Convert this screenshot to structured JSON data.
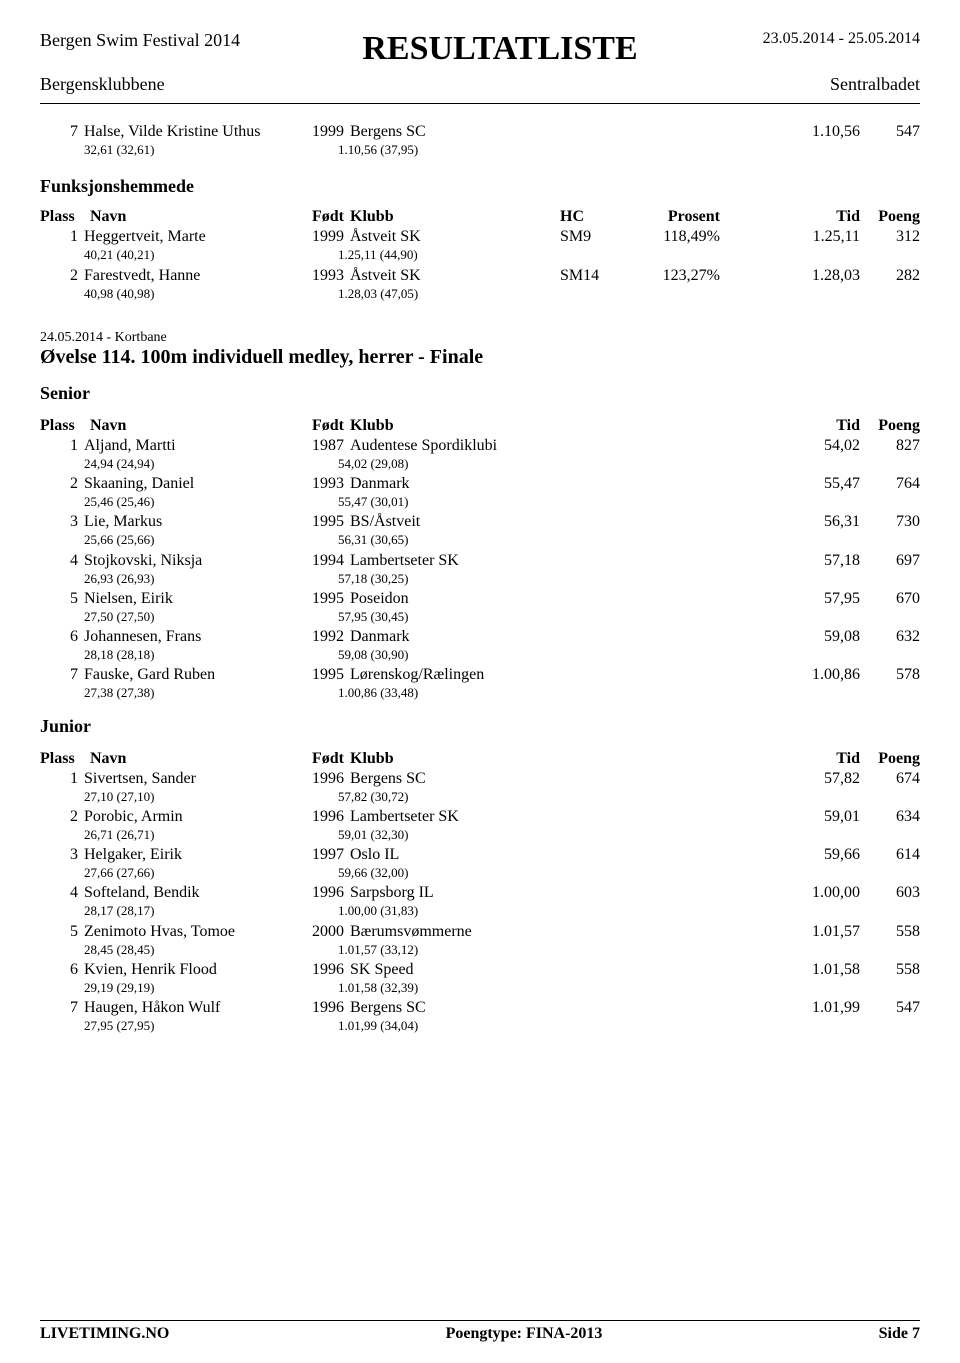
{
  "header": {
    "festival": "Bergen Swim Festival 2014",
    "title": "RESULTATLISTE",
    "dates": "23.05.2014 - 25.05.2014",
    "club": "Bergensklubbene",
    "venue": "Sentralbadet"
  },
  "topResult": {
    "plass": "7",
    "navn": "Halse, Vilde Kristine Uthus",
    "fodt": "1999",
    "klubb": "Bergens SC",
    "tid": "1.10,56",
    "poeng": "547",
    "split1": "32,61 (32,61)",
    "split2": "1.10,56 (37,95)"
  },
  "funksjonshemmede": {
    "title": "Funksjonshemmede",
    "headers": {
      "plass": "Plass",
      "navn": "Navn",
      "fodt": "Født",
      "klubb": "Klubb",
      "hc": "HC",
      "prosent": "Prosent",
      "tid": "Tid",
      "poeng": "Poeng"
    },
    "rows": [
      {
        "plass": "1",
        "navn": "Heggertveit, Marte",
        "fodt": "1999",
        "klubb": "Åstveit SK",
        "hc": "SM9",
        "prosent": "118,49%",
        "tid": "1.25,11",
        "poeng": "312",
        "split1": "40,21 (40,21)",
        "split2": "1.25,11 (44,90)"
      },
      {
        "plass": "2",
        "navn": "Farestvedt, Hanne",
        "fodt": "1993",
        "klubb": "Åstveit SK",
        "hc": "SM14",
        "prosent": "123,27%",
        "tid": "1.28,03",
        "poeng": "282",
        "split1": "40,98 (40,98)",
        "split2": "1.28,03 (47,05)"
      }
    ]
  },
  "event": {
    "date": "24.05.2014 - Kortbane",
    "title": "Øvelse 114. 100m individuell medley, herrer - Finale"
  },
  "senior": {
    "title": "Senior",
    "headers": {
      "plass": "Plass",
      "navn": "Navn",
      "fodt": "Født",
      "klubb": "Klubb",
      "tid": "Tid",
      "poeng": "Poeng"
    },
    "rows": [
      {
        "plass": "1",
        "navn": "Aljand, Martti",
        "fodt": "1987",
        "klubb": "Audentese Spordiklubi",
        "tid": "54,02",
        "poeng": "827",
        "split1": "24,94 (24,94)",
        "split2": "54,02 (29,08)"
      },
      {
        "plass": "2",
        "navn": "Skaaning, Daniel",
        "fodt": "1993",
        "klubb": "Danmark",
        "tid": "55,47",
        "poeng": "764",
        "split1": "25,46 (25,46)",
        "split2": "55,47 (30,01)"
      },
      {
        "plass": "3",
        "navn": "Lie, Markus",
        "fodt": "1995",
        "klubb": "BS/Åstveit",
        "tid": "56,31",
        "poeng": "730",
        "split1": "25,66 (25,66)",
        "split2": "56,31 (30,65)"
      },
      {
        "plass": "4",
        "navn": "Stojkovski, Niksja",
        "fodt": "1994",
        "klubb": "Lambertseter SK",
        "tid": "57,18",
        "poeng": "697",
        "split1": "26,93 (26,93)",
        "split2": "57,18 (30,25)"
      },
      {
        "plass": "5",
        "navn": "Nielsen, Eirik",
        "fodt": "1995",
        "klubb": "Poseidon",
        "tid": "57,95",
        "poeng": "670",
        "split1": "27,50 (27,50)",
        "split2": "57,95 (30,45)"
      },
      {
        "plass": "6",
        "navn": "Johannesen, Frans",
        "fodt": "1992",
        "klubb": "Danmark",
        "tid": "59,08",
        "poeng": "632",
        "split1": "28,18 (28,18)",
        "split2": "59,08 (30,90)"
      },
      {
        "plass": "7",
        "navn": "Fauske, Gard Ruben",
        "fodt": "1995",
        "klubb": "Lørenskog/Rælingen",
        "tid": "1.00,86",
        "poeng": "578",
        "split1": "27,38 (27,38)",
        "split2": "1.00,86 (33,48)"
      }
    ]
  },
  "junior": {
    "title": "Junior",
    "headers": {
      "plass": "Plass",
      "navn": "Navn",
      "fodt": "Født",
      "klubb": "Klubb",
      "tid": "Tid",
      "poeng": "Poeng"
    },
    "rows": [
      {
        "plass": "1",
        "navn": "Sivertsen, Sander",
        "fodt": "1996",
        "klubb": "Bergens SC",
        "tid": "57,82",
        "poeng": "674",
        "split1": "27,10 (27,10)",
        "split2": "57,82 (30,72)"
      },
      {
        "plass": "2",
        "navn": "Porobic, Armin",
        "fodt": "1996",
        "klubb": "Lambertseter SK",
        "tid": "59,01",
        "poeng": "634",
        "split1": "26,71 (26,71)",
        "split2": "59,01 (32,30)"
      },
      {
        "plass": "3",
        "navn": "Helgaker, Eirik",
        "fodt": "1997",
        "klubb": "Oslo IL",
        "tid": "59,66",
        "poeng": "614",
        "split1": "27,66 (27,66)",
        "split2": "59,66 (32,00)"
      },
      {
        "plass": "4",
        "navn": "Softeland, Bendik",
        "fodt": "1996",
        "klubb": "Sarpsborg IL",
        "tid": "1.00,00",
        "poeng": "603",
        "split1": "28,17 (28,17)",
        "split2": "1.00,00 (31,83)"
      },
      {
        "plass": "5",
        "navn": "Zenimoto Hvas, Tomoe",
        "fodt": "2000",
        "klubb": "Bærumsvømmerne",
        "tid": "1.01,57",
        "poeng": "558",
        "split1": "28,45 (28,45)",
        "split2": "1.01,57 (33,12)"
      },
      {
        "plass": "6",
        "navn": "Kvien, Henrik Flood",
        "fodt": "1996",
        "klubb": "SK Speed",
        "tid": "1.01,58",
        "poeng": "558",
        "split1": "29,19 (29,19)",
        "split2": "1.01,58 (32,39)"
      },
      {
        "plass": "7",
        "navn": "Haugen, Håkon Wulf",
        "fodt": "1996",
        "klubb": "Bergens SC",
        "tid": "1.01,99",
        "poeng": "547",
        "split1": "27,95 (27,95)",
        "split2": "1.01,99 (34,04)"
      }
    ]
  },
  "footer": {
    "left": "LIVETIMING.NO",
    "center": "Poengtype: FINA-2013",
    "right": "Side 7"
  }
}
